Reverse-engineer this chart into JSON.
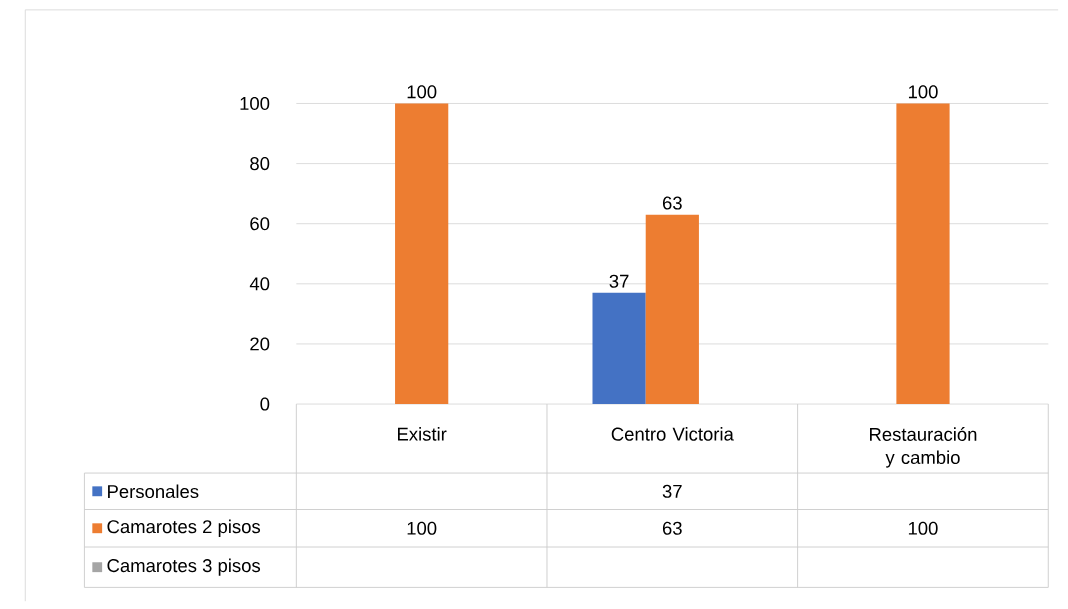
{
  "chart_data": {
    "type": "bar",
    "categories": [
      "Existir",
      "Centro Victoria",
      "Restauración y cambio"
    ],
    "series": [
      {
        "name": "Personales",
        "color": "#4472c4",
        "values": [
          null,
          37,
          null
        ],
        "value_labels": [
          null,
          "37",
          null
        ]
      },
      {
        "name": "Camarotes 2 pisos",
        "color": "#ed7d31",
        "values": [
          100,
          63,
          100
        ],
        "value_labels": [
          "100",
          "63",
          "100"
        ]
      },
      {
        "name": "Camarotes 3 pisos",
        "color": "#a5a5a5",
        "values": [
          null,
          null,
          null
        ],
        "value_labels": [
          null,
          null,
          null
        ]
      }
    ],
    "ylim": [
      0,
      100
    ],
    "yticks": [
      0,
      20,
      40,
      60,
      80,
      100
    ],
    "grid": "y",
    "legend": "bottom",
    "annotations": [
      "37",
      "100",
      "63",
      "100"
    ]
  }
}
